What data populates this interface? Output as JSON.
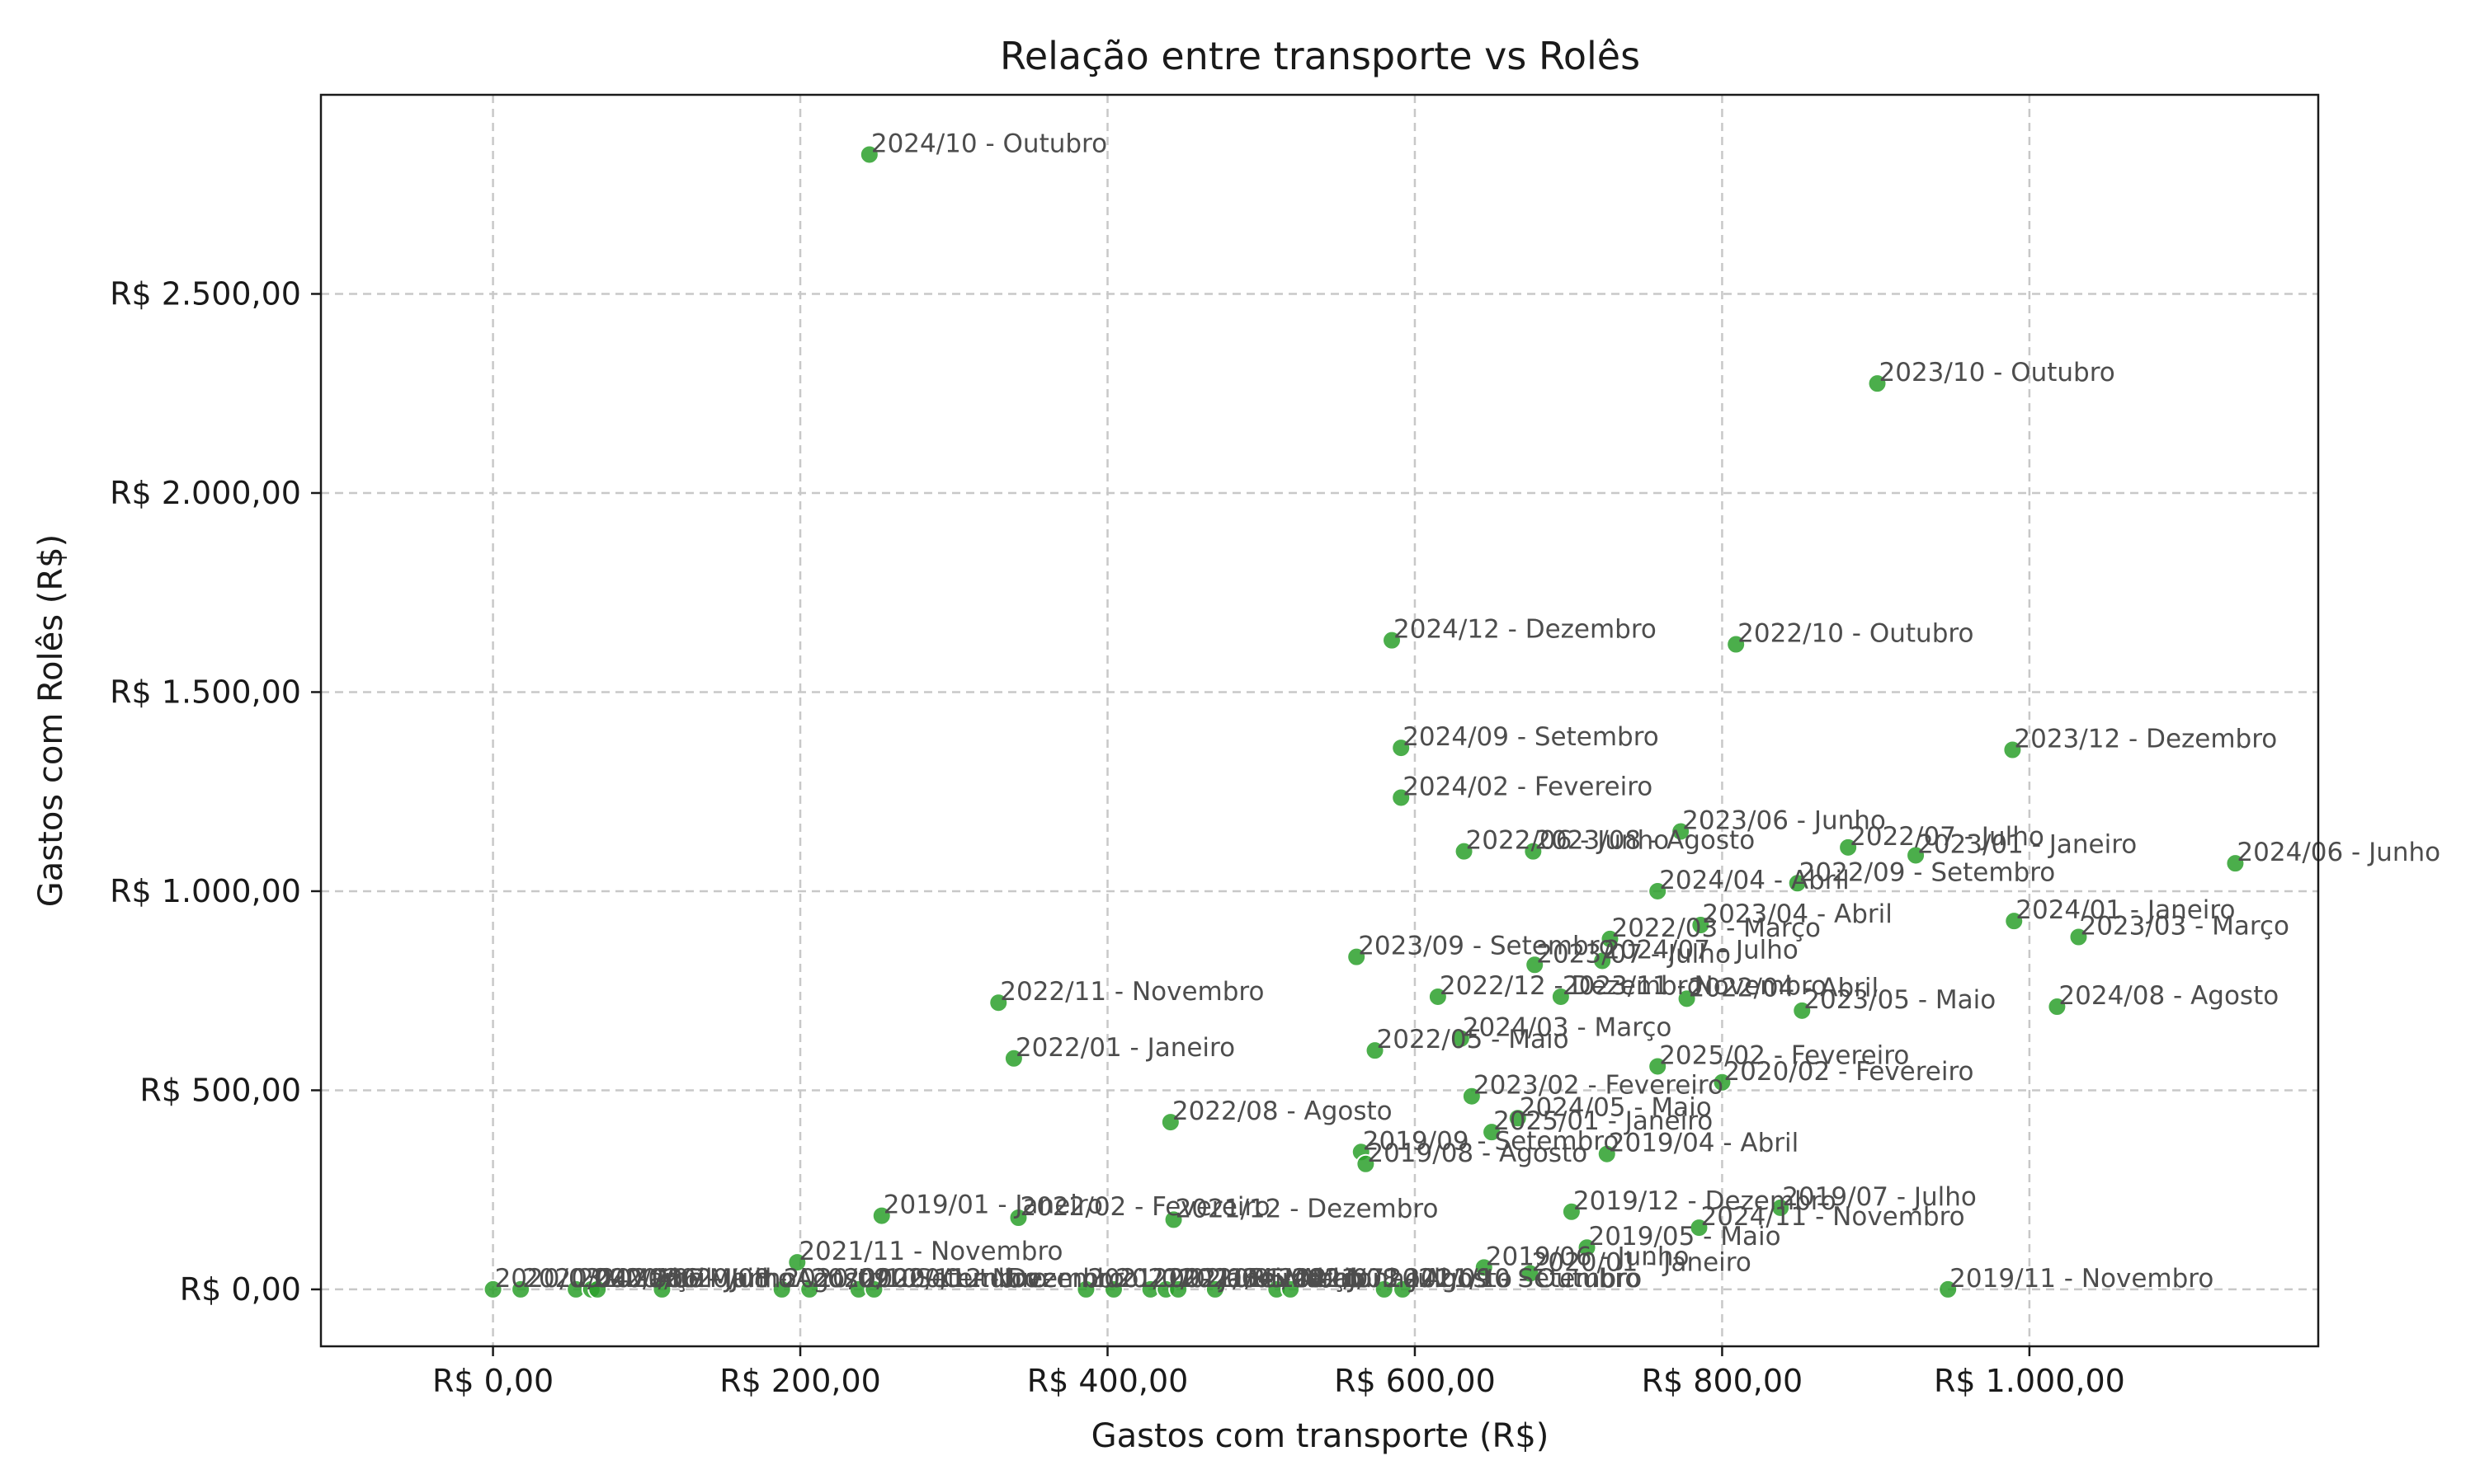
{
  "chart_data": {
    "type": "scatter",
    "title": "Relação entre transporte vs Rolês",
    "xlabel": "Gastos com transporte (R$)",
    "ylabel": "Gastos com Rolês (R$)",
    "xlim": [
      -112,
      1188
    ],
    "ylim": [
      -143,
      3000
    ],
    "x_ticks": [
      0,
      200,
      400,
      600,
      800,
      1000
    ],
    "x_tick_labels": [
      "R$ 0,00",
      "R$ 200,00",
      "R$ 400,00",
      "R$ 600,00",
      "R$ 800,00",
      "R$ 1.000,00"
    ],
    "y_ticks": [
      0,
      500,
      1000,
      1500,
      2000,
      2500
    ],
    "y_tick_labels": [
      "R$ 0,00",
      "R$ 500,00",
      "R$ 1.000,00",
      "R$ 1.500,00",
      "R$ 2.000,00",
      "R$ 2.500,00"
    ],
    "grid": true,
    "marker_color": "#2ca02c",
    "points": [
      {
        "x": 245,
        "y": 2850,
        "label": "2024/10 - Outubro"
      },
      {
        "x": 901,
        "y": 2275,
        "label": "2023/10 - Outubro"
      },
      {
        "x": 585,
        "y": 1630,
        "label": "2024/12 - Dezembro"
      },
      {
        "x": 809,
        "y": 1620,
        "label": "2022/10 - Outubro"
      },
      {
        "x": 591,
        "y": 1360,
        "label": "2024/09 - Setembro"
      },
      {
        "x": 989,
        "y": 1355,
        "label": "2023/12 - Dezembro"
      },
      {
        "x": 591,
        "y": 1235,
        "label": "2024/02 - Fevereiro"
      },
      {
        "x": 773,
        "y": 1150,
        "label": "2023/06 - Junho"
      },
      {
        "x": 882,
        "y": 1110,
        "label": "2022/07 - Julho"
      },
      {
        "x": 632,
        "y": 1100,
        "label": "2022/06 - Junho"
      },
      {
        "x": 677,
        "y": 1100,
        "label": "2023/08 - Agosto"
      },
      {
        "x": 926,
        "y": 1090,
        "label": "2023/01 - Janeiro"
      },
      {
        "x": 1134,
        "y": 1070,
        "label": "2024/06 - Junho"
      },
      {
        "x": 849,
        "y": 1020,
        "label": "2022/09 - Setembro"
      },
      {
        "x": 758,
        "y": 1000,
        "label": "2024/04 - Abril"
      },
      {
        "x": 990,
        "y": 925,
        "label": "2024/01 - Janeiro"
      },
      {
        "x": 786,
        "y": 915,
        "label": "2023/04 - Abril"
      },
      {
        "x": 1032,
        "y": 885,
        "label": "2023/03 - Março"
      },
      {
        "x": 727,
        "y": 880,
        "label": "2022/03 - Março"
      },
      {
        "x": 562,
        "y": 835,
        "label": "2023/09 - Setembro"
      },
      {
        "x": 722,
        "y": 825,
        "label": "2024/07 - Julho"
      },
      {
        "x": 678,
        "y": 815,
        "label": "2023/07 - Julho"
      },
      {
        "x": 329,
        "y": 720,
        "label": "2022/11 - Novembro"
      },
      {
        "x": 615,
        "y": 735,
        "label": "2022/12 - Dezembro"
      },
      {
        "x": 695,
        "y": 735,
        "label": "2023/11 - Novembro"
      },
      {
        "x": 777,
        "y": 730,
        "label": "2022/04 - Abril"
      },
      {
        "x": 1018,
        "y": 710,
        "label": "2024/08 - Agosto"
      },
      {
        "x": 852,
        "y": 700,
        "label": "2023/05 - Maio"
      },
      {
        "x": 630,
        "y": 630,
        "label": "2024/03 - Março"
      },
      {
        "x": 574,
        "y": 600,
        "label": "2022/05 - Maio"
      },
      {
        "x": 339,
        "y": 580,
        "label": "2022/01 - Janeiro"
      },
      {
        "x": 758,
        "y": 560,
        "label": "2025/02 - Fevereiro"
      },
      {
        "x": 800,
        "y": 520,
        "label": "2020/02 - Fevereiro"
      },
      {
        "x": 637,
        "y": 485,
        "label": "2023/02 - Fevereiro"
      },
      {
        "x": 667,
        "y": 430,
        "label": "2024/05 - Maio"
      },
      {
        "x": 441,
        "y": 420,
        "label": "2022/08 - Agosto"
      },
      {
        "x": 650,
        "y": 395,
        "label": "2025/01 - Janeiro"
      },
      {
        "x": 565,
        "y": 345,
        "label": "2019/09 - Setembro"
      },
      {
        "x": 725,
        "y": 340,
        "label": "2019/04 - Abril"
      },
      {
        "x": 568,
        "y": 315,
        "label": "2019/08 - Agosto"
      },
      {
        "x": 838,
        "y": 205,
        "label": "2019/07 - Julho"
      },
      {
        "x": 702,
        "y": 195,
        "label": "2019/12 - Dezembro"
      },
      {
        "x": 253,
        "y": 185,
        "label": "2019/01 - Janeiro"
      },
      {
        "x": 342,
        "y": 180,
        "label": "2022/02 - Fevereiro"
      },
      {
        "x": 443,
        "y": 175,
        "label": "2021/12 - Dezembro"
      },
      {
        "x": 785,
        "y": 155,
        "label": "2024/11 - Novembro"
      },
      {
        "x": 712,
        "y": 105,
        "label": "2019/05 - Maio"
      },
      {
        "x": 198,
        "y": 68,
        "label": "2021/11 - Novembro"
      },
      {
        "x": 645,
        "y": 55,
        "label": "2019/06 - Junho"
      },
      {
        "x": 675,
        "y": 40,
        "label": "2020/01 - Janeiro"
      },
      {
        "x": 947,
        "y": 0,
        "label": "2019/11 - Novembro"
      },
      {
        "x": 0,
        "y": 0,
        "label": "2020/03 - Março"
      },
      {
        "x": 18,
        "y": 0,
        "label": "2020/04 - Abril"
      },
      {
        "x": 54,
        "y": 0,
        "label": "2020/05 - Maio"
      },
      {
        "x": 64,
        "y": 0,
        "label": "2020/06 - Junho"
      },
      {
        "x": 68,
        "y": 0,
        "label": "2020/07 - Julho"
      },
      {
        "x": 110,
        "y": 0,
        "label": "2020/08 - Agosto"
      },
      {
        "x": 188,
        "y": 0,
        "label": "2020/09 - Setembro"
      },
      {
        "x": 206,
        "y": 0,
        "label": "2020/10 - Outubro"
      },
      {
        "x": 238,
        "y": 0,
        "label": "2020/11 - Novembro"
      },
      {
        "x": 248,
        "y": 0,
        "label": "2020/12 - Dezembro"
      },
      {
        "x": 386,
        "y": 0,
        "label": "2021/01 - Janeiro"
      },
      {
        "x": 404,
        "y": 0,
        "label": "2021/02 - Fevereiro"
      },
      {
        "x": 428,
        "y": 0,
        "label": "2021/03 - Março"
      },
      {
        "x": 438,
        "y": 0,
        "label": "2021/04 - Abril"
      },
      {
        "x": 446,
        "y": 0,
        "label": "2021/05 - Maio"
      },
      {
        "x": 470,
        "y": 0,
        "label": "2021/06 - Junho"
      },
      {
        "x": 510,
        "y": 0,
        "label": "2021/07 - Julho"
      },
      {
        "x": 519,
        "y": 0,
        "label": "2021/08 - Agosto"
      },
      {
        "x": 580,
        "y": 0,
        "label": "2021/09 - Setembro"
      },
      {
        "x": 592,
        "y": 0,
        "label": "2021/10 - Outubro"
      }
    ]
  }
}
